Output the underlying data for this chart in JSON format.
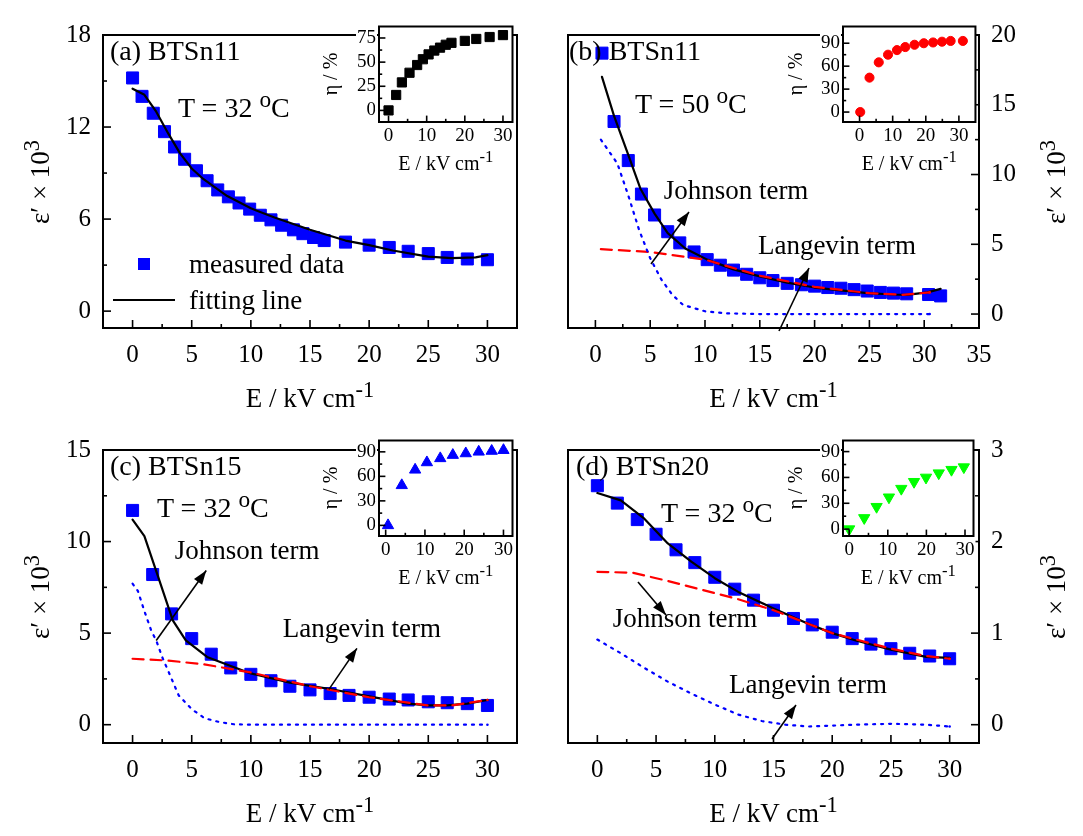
{
  "chart_data": [
    {
      "type": "scatter",
      "title": "(a) BTSn11",
      "subtitle": "T = 32 $^{o}$C",
      "xlabel": "E / kV cm$^{-1}$",
      "ylabel": "ε′ × 10$^{3}$",
      "xlim": [
        -2.5,
        32.5
      ],
      "xticks": [
        0,
        {
          "value": 2.5,
          "label": null
        },
        5,
        {
          "value": 7.5,
          "label": null
        },
        10,
        {
          "value": 12.5,
          "label": null
        },
        15,
        {
          "value": 17.5,
          "label": null
        },
        20,
        {
          "value": 22.5,
          "label": null
        },
        25,
        {
          "value": 27.5,
          "label": null
        },
        30
      ],
      "ylim": [
        -1.1,
        18
      ],
      "yticks": [
        0,
        {
          "value": 3,
          "label": null
        },
        6,
        {
          "value": 9,
          "label": null
        },
        12,
        {
          "value": 15,
          "label": null
        },
        18
      ],
      "legend": "bottom left",
      "series": [
        {
          "name": "measured data",
          "marker": "square",
          "color": "#0000ff",
          "x": [
            0,
            0.8,
            1.75,
            2.7,
            3.55,
            4.4,
            5.4,
            6.3,
            7.2,
            8.1,
            9,
            9.9,
            10.8,
            11.7,
            12.6,
            13.6,
            14.4,
            15.3,
            16.2,
            18,
            20,
            21.7,
            23.3,
            25,
            26.6,
            28.3,
            30
          ],
          "values": [
            15.2,
            14.0,
            12.9,
            11.7,
            10.7,
            9.9,
            9.15,
            8.5,
            7.9,
            7.45,
            7.05,
            6.65,
            6.25,
            5.95,
            5.6,
            5.3,
            5.05,
            4.8,
            4.6,
            4.5,
            4.3,
            4.15,
            3.9,
            3.75,
            3.5,
            3.4,
            3.35
          ]
        },
        {
          "name": "fitting line",
          "type": "line",
          "line_style": "solid",
          "color": "#000000",
          "x": [
            0,
            1,
            2,
            3,
            4,
            5,
            6,
            8,
            10,
            12,
            15,
            18,
            20,
            22,
            25,
            27,
            29,
            30
          ],
          "values": [
            14.5,
            14.1,
            13.0,
            11.6,
            10.3,
            9.3,
            8.6,
            7.5,
            6.7,
            6.1,
            5.3,
            4.6,
            4.3,
            3.95,
            3.55,
            3.45,
            3.5,
            3.65
          ]
        }
      ]
    },
    {
      "type": "scatter",
      "xlabel": "E / kV cm$^{-1}$",
      "ylabel": "η / %",
      "xlim": [
        -2.5,
        32.5
      ],
      "xticks": [
        0,
        {
          "value": 5,
          "label": null
        },
        10,
        {
          "value": 15,
          "label": null
        },
        20,
        {
          "value": 25,
          "label": null
        },
        30
      ],
      "ylim": [
        -12,
        87
      ],
      "yticks": [
        0,
        {
          "value": 12.5,
          "label": null
        },
        25,
        {
          "value": 37.5,
          "label": null
        },
        50,
        {
          "value": 62.5,
          "label": null
        },
        75
      ],
      "marker": "square",
      "series": [
        {
          "color": "#000000",
          "x": [
            0,
            2,
            3.5,
            5.5,
            7.5,
            9,
            10.5,
            12,
            13.5,
            15,
            16.5,
            20,
            23,
            26.5,
            30
          ],
          "values": [
            0,
            16,
            29,
            39,
            47,
            53,
            58,
            62,
            65,
            68,
            70,
            72,
            74,
            76,
            78
          ]
        }
      ]
    },
    {
      "type": "scatter",
      "title": "(b) BTSn11",
      "subtitle": "T = 50 $^{o}$C",
      "xlabel": "E / kV cm$^{-1}$",
      "y2label": "ε′ × 10$^{3}$",
      "xlim": [
        -2.5,
        35
      ],
      "xticks": [
        0,
        {
          "value": 2.5,
          "label": null
        },
        5,
        {
          "value": 7.5,
          "label": null
        },
        10,
        {
          "value": 12.5,
          "label": null
        },
        15,
        {
          "value": 17.5,
          "label": null
        },
        20,
        {
          "value": 22.5,
          "label": null
        },
        25,
        {
          "value": 27.5,
          "label": null
        },
        30,
        {
          "value": 32.5,
          "label": null
        },
        35
      ],
      "y2lim": [
        -1,
        20
      ],
      "y2ticks": [
        0,
        {
          "value": 2.5,
          "label": null
        },
        5,
        {
          "value": 7.5,
          "label": null
        },
        10,
        {
          "value": 12.5,
          "label": null
        },
        15,
        {
          "value": 17.5,
          "label": null
        },
        20
      ],
      "annotations": [
        "Johnson term",
        "Langevin term"
      ],
      "series": [
        {
          "axis": "y2",
          "marker": "square",
          "color": "#0000ff",
          "x": [
            0.6,
            1.7,
            3,
            4.2,
            5.4,
            6.6,
            7.7,
            9,
            10.2,
            11.4,
            12.6,
            13.8,
            15,
            16.2,
            17.5,
            18.8,
            20,
            21.2,
            22.4,
            23.6,
            24.8,
            26,
            27.2,
            28.4,
            30.4,
            31.5
          ],
          "values": [
            18.7,
            13.8,
            11,
            8.6,
            7.1,
            5.9,
            5.1,
            4.45,
            3.9,
            3.5,
            3.15,
            2.85,
            2.6,
            2.4,
            2.2,
            2.1,
            2.0,
            1.9,
            1.85,
            1.75,
            1.65,
            1.55,
            1.5,
            1.45,
            1.4,
            1.3
          ]
        },
        {
          "type": "line",
          "axis": "y2",
          "line_style": "solid",
          "color": "#000000",
          "x": [
            0.6,
            1.7,
            3,
            4.1,
            5.4,
            6.6,
            8.2,
            10.2,
            12.6,
            15,
            17.5,
            20,
            22.4,
            24.8,
            27.2,
            28.4,
            30.3,
            31.5
          ],
          "values": [
            17,
            14.2,
            11.4,
            9,
            7.2,
            5.8,
            4.7,
            3.9,
            3.2,
            2.7,
            2.25,
            1.9,
            1.7,
            1.5,
            1.4,
            1.38,
            1.55,
            1.8
          ]
        },
        {
          "type": "line",
          "axis": "y2",
          "line_style": "dashed",
          "color": "#ff0000",
          "x": [
            0.5,
            5,
            10,
            15,
            20,
            25,
            28,
            30.5
          ],
          "values": [
            4.65,
            4.45,
            3.9,
            2.75,
            1.95,
            1.5,
            1.38,
            1.55
          ]
        },
        {
          "type": "line",
          "axis": "y2",
          "line_style": "dotted",
          "color": "#0000ff",
          "x": [
            0.5,
            2,
            3,
            4,
            5,
            6,
            7,
            8,
            10,
            12,
            15,
            20,
            25,
            30.5
          ],
          "values": [
            12.5,
            10.8,
            8.5,
            6,
            4,
            2.5,
            1.4,
            0.65,
            0.2,
            0.05,
            0,
            0,
            0,
            0
          ]
        }
      ]
    },
    {
      "type": "scatter",
      "xlabel": "E / kV cm$^{-1}$",
      "ylabel": "η / %",
      "xlim": [
        -5,
        35
      ],
      "xticks": [
        0,
        {
          "value": 5,
          "label": null
        },
        10,
        {
          "value": 15,
          "label": null
        },
        20,
        {
          "value": 25,
          "label": null
        },
        30
      ],
      "ylim": [
        -13,
        112
      ],
      "yticks": [
        0,
        {
          "value": 15,
          "label": null
        },
        30,
        {
          "value": 45,
          "label": null
        },
        60,
        {
          "value": 75,
          "label": null
        },
        90
      ],
      "marker": "circle",
      "series": [
        {
          "color": "#ff0000",
          "x": [
            0.2,
            3,
            5.8,
            8.6,
            11.3,
            13.8,
            16.6,
            19.4,
            22.2,
            24.9,
            27.5,
            31.2
          ],
          "values": [
            0,
            45,
            65,
            75,
            81,
            85,
            88,
            90,
            91,
            92,
            93,
            93
          ]
        }
      ]
    },
    {
      "type": "scatter",
      "title": "(c) BTSn15",
      "subtitle": "T = 32 $^{o}$C",
      "xlabel": "E / kV cm$^{-1}$",
      "ylabel": "ε′ × 10$^{3}$",
      "xlim": [
        -2.5,
        32.5
      ],
      "xticks": [
        0,
        {
          "value": 2.5,
          "label": null
        },
        5,
        {
          "value": 7.5,
          "label": null
        },
        10,
        {
          "value": 12.5,
          "label": null
        },
        15,
        {
          "value": 17.5,
          "label": null
        },
        20,
        {
          "value": 22.5,
          "label": null
        },
        25,
        {
          "value": 27.5,
          "label": null
        },
        30
      ],
      "ylim": [
        -1,
        15
      ],
      "yticks": [
        0,
        {
          "value": 2.5,
          "label": null
        },
        5,
        {
          "value": 7.5,
          "label": null
        },
        10,
        {
          "value": 12.5,
          "label": null
        },
        15
      ],
      "annotations": [
        {
          "text": "Johnson term",
          "x": 2,
          "y": 4.6
        },
        {
          "text": "Langevin term",
          "x": 16.6,
          "y": 1.93
        }
      ],
      "series": [
        {
          "marker": "square",
          "color": "#0000ff",
          "x": [
            0,
            1.7,
            3.3,
            5,
            6.65,
            8.3,
            10,
            11.7,
            13.3,
            15,
            16.7,
            18.3,
            20,
            21.7,
            23.3,
            25,
            26.6,
            28.3,
            30
          ],
          "values": [
            11.7,
            8.2,
            6.05,
            4.7,
            3.85,
            3.1,
            2.75,
            2.4,
            2.1,
            1.9,
            1.7,
            1.6,
            1.5,
            1.4,
            1.35,
            1.25,
            1.2,
            1.15,
            1.05
          ]
        },
        {
          "type": "line",
          "line_style": "solid",
          "color": "#000000",
          "x": [
            0,
            1,
            2.2,
            3.4,
            4.5,
            6.3,
            8.3,
            10,
            13.3,
            16.7,
            20,
            23.3,
            25,
            26.6,
            28.3,
            30
          ],
          "values": [
            11.2,
            10.3,
            8,
            5.7,
            4.6,
            3.7,
            3.2,
            2.8,
            2.3,
            1.95,
            1.55,
            1.15,
            1.05,
            1.05,
            1.15,
            1.35
          ]
        },
        {
          "type": "line",
          "line_style": "dashed",
          "color": "#ff0000",
          "x": [
            0,
            3,
            6,
            10,
            15,
            20,
            25,
            27,
            30
          ],
          "values": [
            3.6,
            3.5,
            3.3,
            2.85,
            2.1,
            1.5,
            1.05,
            1.05,
            1.35
          ]
        },
        {
          "type": "line",
          "line_style": "dotted",
          "color": "#0000ff",
          "x": [
            0,
            0.45,
            1,
            1.6,
            2,
            2.5,
            3.9,
            5,
            6.1,
            7.3,
            8.6,
            10,
            15,
            20,
            25,
            30
          ],
          "values": [
            7.7,
            7.3,
            6.2,
            5.1,
            4.6,
            3.7,
            1.6,
            0.85,
            0.35,
            0.15,
            0.02,
            0,
            0,
            0,
            0,
            0
          ]
        }
      ]
    },
    {
      "type": "scatter",
      "xlabel": "E / kV cm$^{-1}$",
      "ylabel": "η / %",
      "xlim": [
        -1.7,
        32.3
      ],
      "xticks": [
        0,
        {
          "value": 5,
          "label": null
        },
        10,
        {
          "value": 15,
          "label": null
        },
        20,
        {
          "value": 25,
          "label": null
        },
        30
      ],
      "ylim": [
        -13,
        104
      ],
      "yticks": [
        0,
        {
          "value": 15,
          "label": null
        },
        30,
        {
          "value": 45,
          "label": null
        },
        60,
        {
          "value": 75,
          "label": null
        },
        90
      ],
      "marker": "triangle",
      "series": [
        {
          "color": "#0000ff",
          "x": [
            0.6,
            4.1,
            7.5,
            10.5,
            13.9,
            17.1,
            20.4,
            23.7,
            27,
            30
          ],
          "values": [
            0,
            49,
            68,
            77,
            82,
            86,
            88,
            90,
            91,
            92
          ]
        }
      ]
    },
    {
      "type": "scatter",
      "title": "(d) BTSn20",
      "subtitle": "T = 32 $^{o}$C",
      "xlabel": "E / kV cm$^{-1}$",
      "y2label": "ε′ × 10$^{3}$",
      "xlim": [
        -2.5,
        32.5
      ],
      "xticks": [
        0,
        {
          "value": 2.5,
          "label": null
        },
        5,
        {
          "value": 7.5,
          "label": null
        },
        10,
        {
          "value": 12.5,
          "label": null
        },
        15,
        {
          "value": 17.5,
          "label": null
        },
        20,
        {
          "value": 22.5,
          "label": null
        },
        25,
        {
          "value": 27.5,
          "label": null
        },
        30
      ],
      "y2lim": [
        -0.2,
        3
      ],
      "y2ticks": [
        0,
        {
          "value": 0.5,
          "label": null
        },
        1,
        {
          "value": 1.5,
          "label": null
        },
        2,
        {
          "value": 2.5,
          "label": null
        },
        3
      ],
      "annotations": [
        "Johnson term",
        "Langevin term"
      ],
      "series": [
        {
          "axis": "y2",
          "marker": "square",
          "color": "#0000ff",
          "x": [
            0,
            1.7,
            3.4,
            5,
            6.7,
            8.3,
            10,
            11.7,
            13.3,
            15,
            16.7,
            18.3,
            20,
            21.7,
            23.3,
            25,
            26.6,
            28.3,
            30
          ],
          "values": [
            2.61,
            2.42,
            2.24,
            2.08,
            1.91,
            1.77,
            1.61,
            1.48,
            1.36,
            1.25,
            1.16,
            1.09,
            1.01,
            0.94,
            0.88,
            0.83,
            0.78,
            0.75,
            0.72
          ]
        },
        {
          "type": "line",
          "axis": "y2",
          "line_style": "solid",
          "color": "#000000",
          "x": [
            0,
            2,
            4,
            6,
            8,
            10,
            12,
            15,
            18,
            20,
            22,
            25,
            28,
            30
          ],
          "values": [
            2.53,
            2.45,
            2.25,
            1.98,
            1.78,
            1.6,
            1.45,
            1.27,
            1.1,
            1.0,
            0.92,
            0.82,
            0.74,
            0.73
          ]
        },
        {
          "type": "line",
          "axis": "y2",
          "line_style": "dashed",
          "color": "#ff0000",
          "x": [
            0,
            3,
            6,
            9,
            12,
            15,
            18,
            20,
            25,
            28,
            30
          ],
          "values": [
            1.67,
            1.66,
            1.57,
            1.47,
            1.37,
            1.25,
            1.1,
            1.0,
            0.83,
            0.75,
            0.72
          ]
        },
        {
          "type": "line",
          "axis": "y2",
          "line_style": "dotted",
          "color": "#0000ff",
          "x": [
            0,
            2,
            4,
            6,
            8,
            10,
            12,
            14,
            16,
            18,
            20,
            22,
            25,
            28,
            30
          ],
          "values": [
            0.93,
            0.78,
            0.62,
            0.47,
            0.34,
            0.22,
            0.11,
            0.04,
            0,
            -0.02,
            -0.01,
            0,
            0.01,
            0,
            -0.02
          ]
        }
      ]
    },
    {
      "type": "scatter",
      "xlabel": "E / kV cm$^{-1}$",
      "ylabel": "η / %",
      "xlim": [
        -1.6,
        32.2
      ],
      "xticks": [
        0,
        {
          "value": 5,
          "label": null
        },
        10,
        {
          "value": 15,
          "label": null
        },
        20,
        {
          "value": 25,
          "label": null
        },
        30
      ],
      "ylim": [
        -8,
        103
      ],
      "yticks": [
        0,
        {
          "value": 15,
          "label": null
        },
        30,
        {
          "value": 45,
          "label": null
        },
        60,
        {
          "value": 75,
          "label": null
        },
        90
      ],
      "marker": "triangle-down",
      "series": [
        {
          "color": "#00ff00",
          "x": [
            0,
            3.9,
            7.1,
            10.3,
            13.5,
            16.8,
            19.9,
            23.2,
            26.5,
            29.7
          ],
          "values": [
            0,
            13,
            26,
            37,
            47,
            55,
            60,
            65,
            69,
            72
          ]
        }
      ]
    }
  ]
}
